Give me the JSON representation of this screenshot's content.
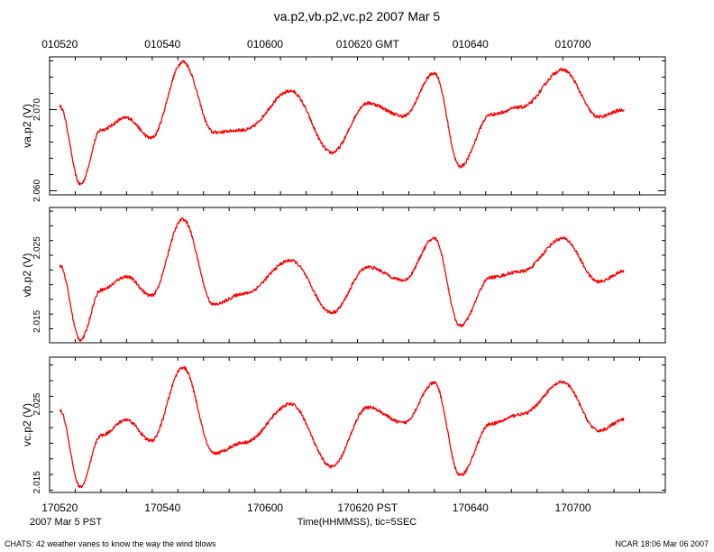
{
  "chart_data": {
    "type": "line",
    "title": "va.p2,vb.p2,vc.p2 2007 Mar 5",
    "line_color": "#ff0000",
    "top_axis": {
      "ticks": [
        "010520",
        "010540",
        "010600",
        "010620 GMT",
        "010640",
        "010700"
      ],
      "tick_minutes": [
        5.333,
        5.667,
        6.0,
        6.333,
        6.667,
        7.0
      ]
    },
    "bottom_axis": {
      "ticks": [
        "170520",
        "170540",
        "170600",
        "170620 PST",
        "170640",
        "170700"
      ],
      "tick_minutes": [
        5.333,
        5.667,
        6.0,
        6.333,
        6.667,
        7.0
      ],
      "xlabel": "Time(HHMMSS), tic=5SEC",
      "date_label": "2007 Mar  5 PST"
    },
    "xlim_minutes": [
      5.3,
      7.3
    ],
    "trace_x_minutes": [
      5.333,
      5.4,
      5.467,
      5.55,
      5.63,
      5.733,
      5.833,
      5.933,
      6.083,
      6.217,
      6.333,
      6.45,
      6.55,
      6.633,
      6.733,
      6.833,
      6.967,
      7.083,
      7.167
    ],
    "series": [
      {
        "name": "va.p2",
        "ylabel": "va.p2 (V)",
        "ytick_labels": [
          "2.070",
          "2.060"
        ],
        "ytick_values": [
          2.07,
          2.06
        ],
        "ylim": [
          2.0595,
          2.0765
        ],
        "values": [
          2.0704,
          2.0608,
          2.0675,
          2.069,
          2.0665,
          2.0759,
          2.0672,
          2.0675,
          2.0723,
          2.0647,
          2.0708,
          2.0692,
          2.0745,
          2.063,
          2.0694,
          2.0703,
          2.0749,
          2.0691,
          2.07
        ]
      },
      {
        "name": "vb.p2",
        "ylabel": "vb.p2 (V)",
        "ytick_labels": [
          "2.025",
          "2.015"
        ],
        "ytick_values": [
          2.025,
          2.015
        ],
        "ylim": [
          2.0121,
          2.0305
        ],
        "values": [
          2.0226,
          2.0125,
          2.0193,
          2.0211,
          2.0185,
          2.0289,
          2.0173,
          2.0188,
          2.0233,
          2.0162,
          2.0224,
          2.0206,
          2.0263,
          2.0144,
          2.021,
          2.0218,
          2.0263,
          2.0204,
          2.0218
        ]
      },
      {
        "name": "vc.p2",
        "ylabel": "vc.p2 (V)",
        "ytick_labels": [
          "2.025",
          "2.015"
        ],
        "ytick_values": [
          2.025,
          2.015
        ],
        "ylim": [
          2.0137,
          2.031
        ],
        "values": [
          2.0242,
          2.0144,
          2.021,
          2.023,
          2.0203,
          2.0297,
          2.0187,
          2.0201,
          2.025,
          2.017,
          2.0246,
          2.0226,
          2.0277,
          2.0159,
          2.0225,
          2.0237,
          2.0278,
          2.0216,
          2.023
        ]
      }
    ]
  },
  "footer": {
    "left": "CHATS: 42 weather vanes to know the way the wind blows",
    "right": "NCAR 18:06 Mar 06 2007"
  }
}
